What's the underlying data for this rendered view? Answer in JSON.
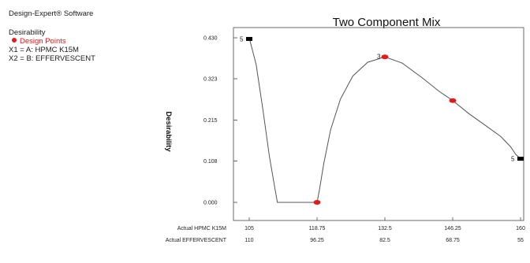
{
  "sidebar": {
    "software": "Design-Expert® Software",
    "response": "Desirability",
    "design_points": "Design Points",
    "x1": "X1 = A: HPMC K15M",
    "x2": "X2 = B: EFFERVESCENT"
  },
  "colors": {
    "curve": "#555555",
    "design_point": "#e01b1b",
    "end_marker": "#000000"
  },
  "chart_data": {
    "type": "line",
    "title": "Two Component Mix",
    "ylabel": "Desirability",
    "ylim": [
      0.0,
      0.43
    ],
    "xlim": [
      105,
      160
    ],
    "y_ticks": [
      "0.000",
      "0.108",
      "0.215",
      "0.323",
      "0.430"
    ],
    "x_axes": [
      {
        "label": "Actual HPMC K15M",
        "ticks": [
          "105",
          "118.75",
          "132.5",
          "146.25",
          "160"
        ]
      },
      {
        "label": "Actual EFFERVESCENT",
        "ticks": [
          "110",
          "96.25",
          "82.5",
          "68.75",
          "55"
        ]
      }
    ],
    "curve": [
      [
        105,
        0.43
      ],
      [
        106.4,
        0.36
      ],
      [
        107.8,
        0.24
      ],
      [
        109.1,
        0.12
      ],
      [
        110.3,
        0.03
      ],
      [
        110.7,
        0.0
      ],
      [
        118.75,
        0.0
      ],
      [
        119.2,
        0.03
      ],
      [
        120.1,
        0.1
      ],
      [
        121.5,
        0.19
      ],
      [
        123.5,
        0.27
      ],
      [
        126,
        0.33
      ],
      [
        129,
        0.366
      ],
      [
        132.5,
        0.38
      ],
      [
        136,
        0.364
      ],
      [
        140,
        0.326
      ],
      [
        143.5,
        0.29
      ],
      [
        146.25,
        0.266
      ],
      [
        149.5,
        0.232
      ],
      [
        153,
        0.2
      ],
      [
        156,
        0.172
      ],
      [
        158,
        0.145
      ],
      [
        159,
        0.126
      ],
      [
        160,
        0.114
      ]
    ],
    "design_points": [
      {
        "x": 118.75,
        "y": 0.0
      },
      {
        "x": 132.5,
        "y": 0.38,
        "label": "3"
      },
      {
        "x": 146.25,
        "y": 0.266
      }
    ],
    "end_points": [
      {
        "x": 105,
        "y": 0.427,
        "label": "5"
      },
      {
        "x": 160,
        "y": 0.114,
        "label": "5"
      }
    ]
  }
}
